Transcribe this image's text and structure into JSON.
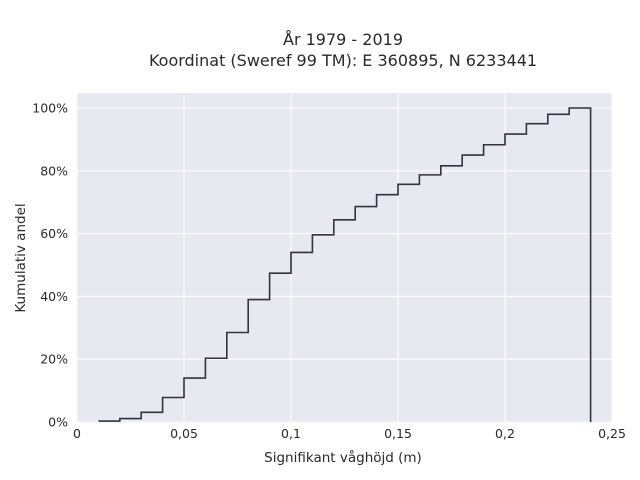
{
  "chart_data": {
    "type": "line",
    "step": true,
    "title_lines": [
      "År 1979 - 2019",
      "Koordinat (Sweref 99 TM): E 360895, N 6233441"
    ],
    "xlabel": "Signifikant våghöjd (m)",
    "ylabel": "Kumulativ andel",
    "xlim": [
      0,
      0.25
    ],
    "ylim": [
      0,
      1.0
    ],
    "xticks": [
      0,
      0.05,
      0.1,
      0.15,
      0.2,
      0.25
    ],
    "xtick_labels": [
      "0",
      "0,05",
      "0,1",
      "0,15",
      "0,2",
      "0,25"
    ],
    "yticks": [
      0,
      0.2,
      0.4,
      0.6,
      0.8,
      1.0
    ],
    "ytick_labels": [
      "0%",
      "20%",
      "40%",
      "60%",
      "80%",
      "100%"
    ],
    "grid": true,
    "background": "#e8e8f0",
    "line_color": "#2e3440",
    "x": [
      0.01,
      0.02,
      0.03,
      0.04,
      0.05,
      0.06,
      0.07,
      0.08,
      0.09,
      0.1,
      0.11,
      0.12,
      0.13,
      0.14,
      0.15,
      0.16,
      0.17,
      0.18,
      0.19,
      0.2,
      0.21,
      0.22,
      0.23,
      0.24
    ],
    "values": [
      0.003,
      0.011,
      0.031,
      0.078,
      0.14,
      0.203,
      0.285,
      0.39,
      0.474,
      0.54,
      0.596,
      0.644,
      0.686,
      0.724,
      0.757,
      0.787,
      0.816,
      0.85,
      0.883,
      0.917,
      0.95,
      0.98,
      1.0,
      0.0
    ]
  }
}
